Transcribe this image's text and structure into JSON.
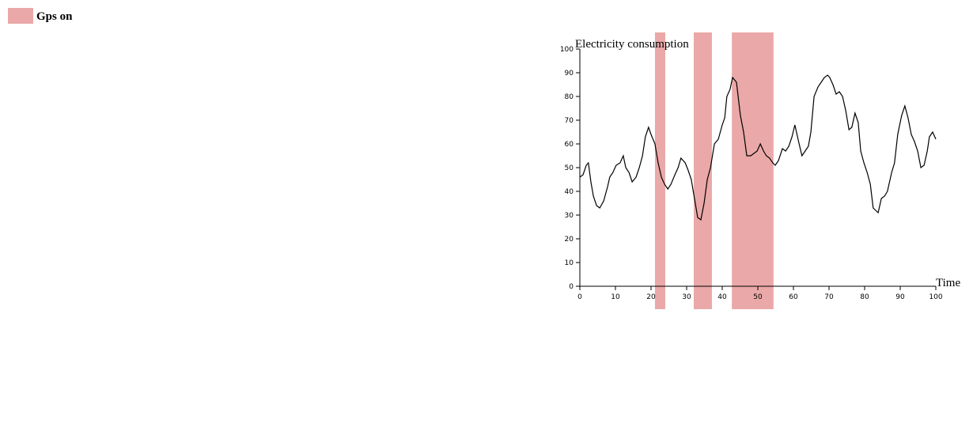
{
  "chart_data": {
    "type": "line",
    "x_label": "Time",
    "y_label": "Electricity consumption",
    "xlim": [
      0,
      100
    ],
    "xticks": [
      0,
      10,
      20,
      30,
      40,
      50,
      60,
      70,
      80,
      90,
      100
    ],
    "ylim": [
      0,
      100
    ],
    "yticks": [
      0,
      10,
      20,
      30,
      40,
      50,
      60,
      70,
      80,
      90,
      100
    ],
    "bands": {
      "name": "Gps on",
      "color": "#eaa8a8",
      "intervals": [
        [
          21.1,
          24
        ],
        [
          32,
          37.1
        ],
        [
          42.7,
          54.4
        ]
      ]
    },
    "series": [
      {
        "color": "#000000",
        "x": [
          0,
          0.9,
          1.8,
          2.4,
          3.1,
          3.8,
          4.7,
          5.6,
          6.7,
          7.8,
          8.4,
          9.3,
          10.2,
          11.3,
          12.2,
          12.9,
          13.8,
          14.7,
          15.8,
          16.7,
          17.6,
          18.4,
          19.3,
          20,
          21.1,
          22,
          22.9,
          23.8,
          24.7,
          25.6,
          26.7,
          27.6,
          28.4,
          29.6,
          30.4,
          31.3,
          32.2,
          33.1,
          34,
          34.9,
          35.8,
          36.7,
          37.8,
          38.9,
          40,
          40.7,
          41.3,
          42.2,
          42.9,
          44,
          45.1,
          46,
          46.9,
          48,
          48.9,
          49.8,
          50.7,
          51.6,
          52.4,
          53.3,
          54.2,
          54.9,
          55.8,
          56.9,
          57.8,
          58.7,
          59.6,
          60.4,
          61.6,
          62.4,
          63.3,
          64.2,
          64.9,
          65.8,
          66.9,
          67.8,
          68.7,
          69.6,
          70.2,
          71.1,
          72,
          72.9,
          73.8,
          74.7,
          75.6,
          76.4,
          77.3,
          78.2,
          78.9,
          79.8,
          80.7,
          81.6,
          82.4,
          83.8,
          84.7,
          85.6,
          86.4,
          87.6,
          88.4,
          89.3,
          90.4,
          91.3,
          92.2,
          93.1,
          94,
          94.9,
          95.8,
          96.7,
          97.6,
          98.2,
          99.1,
          100
        ],
        "values": [
          46,
          47,
          51,
          52,
          44,
          38,
          34,
          33,
          36,
          42,
          46,
          48,
          51,
          52,
          55,
          50,
          48,
          44,
          46,
          50,
          55,
          63,
          67,
          64,
          60,
          52,
          46,
          43,
          41,
          43,
          47,
          50,
          54,
          52,
          49,
          45,
          37,
          29,
          28,
          35,
          45,
          50,
          60,
          62,
          68,
          71,
          80,
          83,
          88,
          86,
          72,
          65,
          55,
          55,
          56,
          57,
          60,
          57,
          55,
          54,
          52,
          51,
          53,
          58,
          57,
          59,
          63,
          68,
          60,
          55,
          57,
          59,
          65,
          80,
          84,
          86,
          88,
          89,
          88,
          85,
          81,
          82,
          80,
          74,
          66,
          67,
          73,
          69,
          57,
          52,
          48,
          43,
          33,
          31,
          37,
          38,
          40,
          48,
          52,
          64,
          72,
          76,
          71,
          64,
          61,
          57,
          50,
          51,
          57,
          63,
          65,
          62
        ]
      }
    ]
  }
}
